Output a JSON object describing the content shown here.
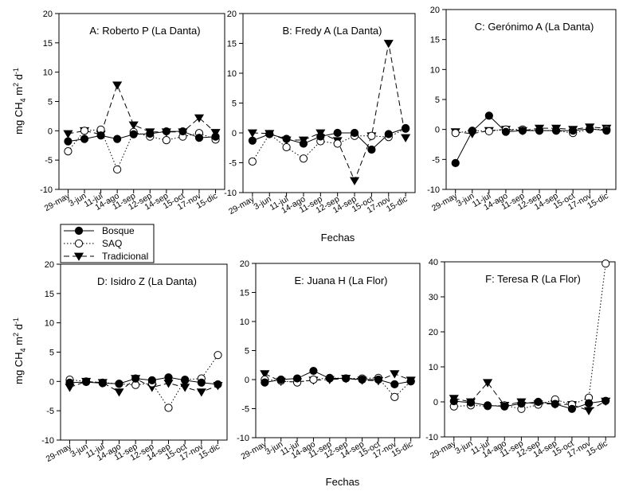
{
  "figure": {
    "xlabel_top": "Fechas",
    "xlabel_bottom": "Fechas",
    "ylabel": {
      "base": "mg CH",
      "sub1": "4",
      "mid": " m",
      "sup1": "2",
      "mid2": " d",
      "sup2": "-1"
    },
    "legend": {
      "entries": [
        {
          "name": "Bosque",
          "style": "solid",
          "marker": "filled-circle"
        },
        {
          "name": "SAQ",
          "style": "dotted",
          "marker": "open-circle"
        },
        {
          "name": "Tradicional",
          "style": "dashed",
          "marker": "filled-triangle-down"
        }
      ]
    }
  },
  "chart_data": [
    {
      "type": "line",
      "title": "A: Roberto P (La Danta)",
      "categories": [
        "29-may",
        "3-jun",
        "11-jul",
        "14-ago",
        "11-sep",
        "12-sep",
        "14-sep",
        "15-oct",
        "17-nov",
        "15-dic"
      ],
      "ylim": [
        -10,
        20
      ],
      "yticks": [
        -10,
        -5,
        0,
        5,
        10,
        15,
        20
      ],
      "series": [
        {
          "name": "Bosque",
          "values": [
            -1.8,
            -1.4,
            -0.8,
            -1.4,
            -0.6,
            -0.5,
            -0.1,
            -0.1,
            -1.2,
            -1.0
          ]
        },
        {
          "name": "SAQ",
          "values": [
            -3.5,
            0.0,
            0.2,
            -6.6,
            -0.2,
            -1.0,
            -1.6,
            -1.0,
            -0.4,
            -1.5
          ]
        },
        {
          "name": "Tradicional",
          "values": [
            -0.5,
            0.0,
            -0.6,
            7.8,
            1.0,
            -0.2,
            -0.2,
            -0.2,
            2.2,
            -0.3
          ]
        }
      ]
    },
    {
      "type": "line",
      "title": "B: Fredy A (La Danta)",
      "categories": [
        "29-may",
        "3-jun",
        "11-jul",
        "14-ago",
        "11-sep",
        "12-sep",
        "14-sep",
        "15-oct",
        "17-nov",
        "15-dic"
      ],
      "ylim": [
        -10,
        20
      ],
      "yticks": [
        -10,
        -5,
        0,
        5,
        10,
        15,
        20
      ],
      "series": [
        {
          "name": "Bosque",
          "values": [
            -1.3,
            -0.2,
            -1.0,
            -1.8,
            -0.6,
            0.0,
            0.0,
            -2.8,
            -0.2,
            0.8
          ]
        },
        {
          "name": "SAQ",
          "values": [
            -4.8,
            -0.2,
            -2.4,
            -4.3,
            -1.4,
            -1.8,
            -0.5,
            -0.5,
            -0.7,
            0.7
          ]
        },
        {
          "name": "Tradicional",
          "values": [
            0.0,
            -0.1,
            -1.2,
            -1.2,
            0.0,
            -1.3,
            -8.0,
            -0.5,
            15.0,
            -0.8
          ]
        }
      ]
    },
    {
      "type": "line",
      "title": "C: Gerónimo A (La Danta)",
      "categories": [
        "29-may",
        "3-jun",
        "11-jul",
        "14-ago",
        "11-sep",
        "12-sep",
        "14-sep",
        "15-oct",
        "17-nov",
        "15-dic"
      ],
      "ylim": [
        -10,
        20
      ],
      "yticks": [
        -10,
        -5,
        0,
        5,
        10,
        15,
        20
      ],
      "series": [
        {
          "name": "Bosque",
          "values": [
            -5.6,
            -0.3,
            2.3,
            -0.4,
            -0.2,
            -0.2,
            -0.2,
            -0.2,
            0.1,
            -0.2
          ]
        },
        {
          "name": "SAQ",
          "values": [
            -0.6,
            -0.2,
            -0.3,
            0.0,
            0.0,
            -0.2,
            -0.2,
            -0.6,
            0.0,
            0.0
          ]
        },
        {
          "name": "Tradicional",
          "values": [
            -0.4,
            -0.7,
            -0.2,
            0.0,
            -0.2,
            0.2,
            0.2,
            0.0,
            0.4,
            0.2
          ]
        }
      ]
    },
    {
      "type": "line",
      "title": "D: Isidro Z (La Danta)",
      "categories": [
        "29-may",
        "3-jun",
        "11-jul",
        "14-ago",
        "11-sep",
        "12-sep",
        "14-sep",
        "15-oct",
        "17-nov",
        "15-dic"
      ],
      "ylim": [
        -10,
        20
      ],
      "yticks": [
        -10,
        -5,
        0,
        5,
        10,
        15,
        20
      ],
      "series": [
        {
          "name": "Bosque",
          "values": [
            -0.2,
            -0.1,
            -0.3,
            -0.4,
            0.5,
            0.2,
            0.7,
            0.2,
            -0.2,
            -0.5
          ]
        },
        {
          "name": "SAQ",
          "values": [
            0.3,
            0.0,
            -0.2,
            -0.4,
            -0.6,
            -0.3,
            -4.5,
            0.3,
            0.5,
            4.5
          ]
        },
        {
          "name": "Tradicional",
          "values": [
            -1.0,
            0.0,
            -0.2,
            -1.8,
            0.5,
            -1.0,
            -0.3,
            -1.0,
            -1.8,
            -0.7
          ]
        }
      ]
    },
    {
      "type": "line",
      "title": "E: Juana H (La Flor)",
      "categories": [
        "29-may",
        "3-jun",
        "11-jul",
        "14-ago",
        "11-sep",
        "12-sep",
        "14-sep",
        "15-oct",
        "17-nov",
        "15-dic"
      ],
      "ylim": [
        -10,
        20
      ],
      "yticks": [
        -10,
        -5,
        0,
        5,
        10,
        15,
        20
      ],
      "series": [
        {
          "name": "Bosque",
          "values": [
            -0.5,
            0.0,
            0.2,
            1.5,
            0.2,
            0.2,
            0.0,
            0.0,
            -0.8,
            -0.3
          ]
        },
        {
          "name": "SAQ",
          "values": [
            0.0,
            -0.2,
            -0.5,
            0.0,
            0.3,
            0.2,
            0.2,
            0.3,
            -3.0,
            -0.3
          ]
        },
        {
          "name": "Tradicional",
          "values": [
            1.0,
            -0.3,
            -0.4,
            -0.1,
            0.0,
            0.2,
            -0.1,
            -0.2,
            1.0,
            -0.1
          ]
        }
      ]
    },
    {
      "type": "line",
      "title": "F: Teresa R (La Flor)",
      "categories": [
        "29-may",
        "3-jun",
        "11-jul",
        "14-ago",
        "11-sep",
        "12-sep",
        "14-sep",
        "15-oct",
        "17-nov",
        "15-dic"
      ],
      "ylim": [
        -10,
        40
      ],
      "yticks": [
        -10,
        0,
        10,
        20,
        30,
        40
      ],
      "series": [
        {
          "name": "Bosque",
          "values": [
            0.2,
            -0.2,
            -1.0,
            -1.3,
            -0.5,
            0.0,
            -0.6,
            -2.0,
            -0.4,
            0.3
          ]
        },
        {
          "name": "SAQ",
          "values": [
            -1.3,
            -1.0,
            -1.2,
            -1.0,
            -2.0,
            -0.8,
            0.7,
            -0.8,
            1.2,
            39.5
          ]
        },
        {
          "name": "Tradicional",
          "values": [
            1.0,
            0.0,
            5.5,
            -1.0,
            0.0,
            -0.6,
            -0.6,
            -0.8,
            -2.5,
            0.2
          ]
        }
      ]
    }
  ]
}
